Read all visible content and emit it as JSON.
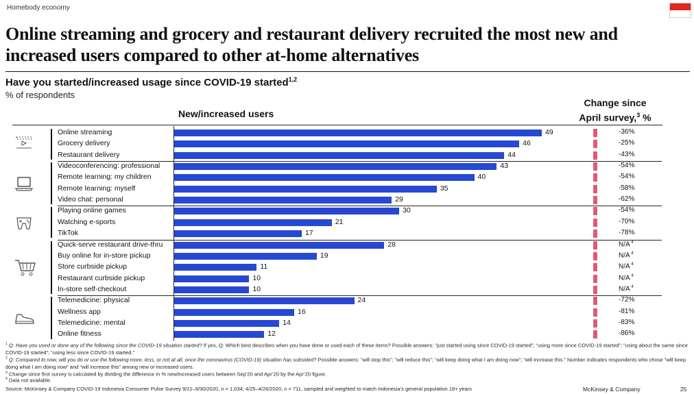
{
  "section_label": "Homebody economy",
  "title": "Online streaming and grocery and restaurant delivery recruited the most new and increased users compared to other at-home alternatives",
  "question": "Have you started/increased usage since COVID-19 started",
  "question_sup": "1,2",
  "unit_note": "% of respondents",
  "chart_data": {
    "type": "bar",
    "orientation": "horizontal",
    "title": "New/increased users",
    "change_header": "Change since April survey,",
    "change_header_sup": "3",
    "change_header_suffix": " %",
    "categories": [
      "Online streaming",
      "Grocery delivery",
      "Restaurant delivery",
      "Videoconferencing: professional",
      "Remote learning: my children",
      "Remote learning: myself",
      "Video chat: personal",
      "Playing online games",
      "Watching e-sports",
      "TikTok",
      "Quick-serve restaurant drive-thru",
      "Buy online for in-store pickup",
      "Store curbside pickup",
      "Restaurant curbside pickup",
      "In-store self-checkout",
      "Telemedicine: physical",
      "Wellness app",
      "Telemedicine: mental",
      "Online fitness"
    ],
    "values": [
      49,
      46,
      44,
      43,
      40,
      35,
      29,
      30,
      21,
      17,
      28,
      19,
      11,
      10,
      10,
      24,
      16,
      14,
      12
    ],
    "change": [
      "-36%",
      "-25%",
      "-43%",
      "-54%",
      "-54%",
      "-58%",
      "-62%",
      "-54%",
      "-70%",
      "-78%",
      "N/A",
      "N/A",
      "N/A",
      "N/A",
      "N/A",
      "-72%",
      "-81%",
      "-83%",
      "-86%"
    ],
    "change_sup": [
      "",
      "",
      "",
      "",
      "",
      "",
      "",
      "",
      "",
      "",
      "4",
      "4",
      "4",
      "4",
      "4",
      "",
      "",
      "",
      ""
    ],
    "groups": [
      {
        "icon": "tv-play-icon",
        "rows": [
          0,
          1,
          2
        ]
      },
      {
        "icon": "laptop-icon",
        "rows": [
          3,
          4,
          5,
          6
        ]
      },
      {
        "icon": "game-controller-icon",
        "rows": [
          7,
          8,
          9
        ]
      },
      {
        "icon": "shopping-cart-icon",
        "rows": [
          10,
          11,
          12,
          13,
          14
        ]
      },
      {
        "icon": "sneaker-icon",
        "rows": [
          15,
          16,
          17,
          18
        ]
      }
    ],
    "bar_color": "#2748d2",
    "change_marker_color": "#de5c73",
    "xlim": [
      0,
      50
    ]
  },
  "footnotes": [
    {
      "num": "1",
      "italic": "Q: Have you used or done any of the following since the COVID-19 situation started?",
      "text": " If yes, Q: Which best describes when you have done or used each of these items? Possible answers: “just started using since COVID-19 started”; “using more since COVID-19 started”; “using about the same since COVID-19 started”; “using less since COVID-19 started.”"
    },
    {
      "num": "2",
      "italic": "Q: Compared to now, will you do or use the following more, less, or not at all, once the coronavirus (COVID-19) situation has subsided?",
      "text": " Possible answers: “will stop this”; “will reduce this”; “will keep doing what I am doing now”; “will increase this.” Number indicates respondents who chose “will keep doing what I am doing now” and “will increase this” among new or increased users."
    },
    {
      "num": "3",
      "italic": "",
      "text": "Change since first survey is calculated by dividing the difference in % new/increased users between Sep’20 and Apr’20 by the Apr’20 figure."
    },
    {
      "num": "4",
      "italic": "",
      "text": "Data not available."
    }
  ],
  "source": "Source: McKinsey & Company COVID-19 Indonesia Consumer Pulse Survey 9/21–9/30/2020, n = 1,034; 4/25–4/26/2020, n = 711, sampled and weighted to match Indonesia’s general population 18+ years",
  "brand": "McKinsey & Company",
  "page_number": "25",
  "flag_colors": {
    "top": "#e1261c",
    "bottom": "#ffffff"
  }
}
